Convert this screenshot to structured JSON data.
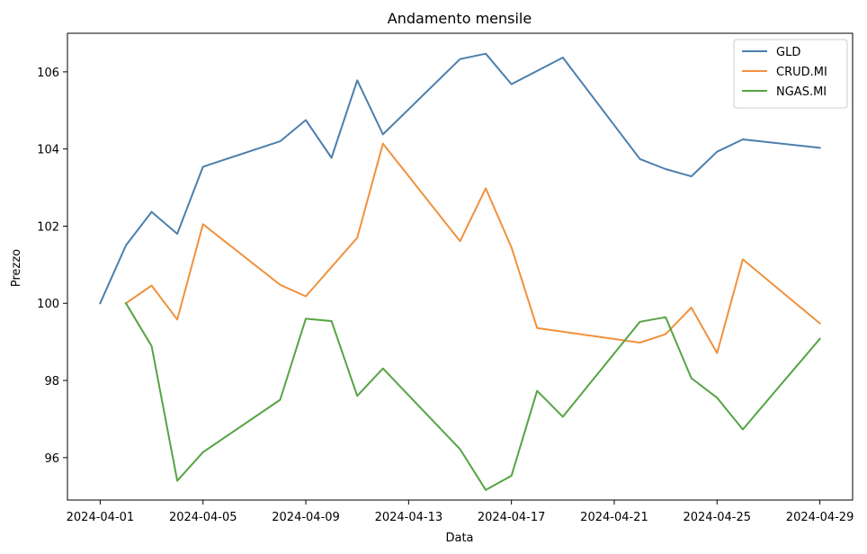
{
  "chart_data": {
    "type": "line",
    "title": "Andamento mensile",
    "xlabel": "Data",
    "ylabel": "Prezzo",
    "xlim": [
      "2024-04-01",
      "2024-04-29"
    ],
    "ylim": [
      94.9,
      107.0
    ],
    "x_ticks": [
      "2024-04-01",
      "2024-04-05",
      "2024-04-09",
      "2024-04-13",
      "2024-04-17",
      "2024-04-21",
      "2024-04-25",
      "2024-04-29"
    ],
    "y_ticks": [
      96,
      98,
      100,
      102,
      104,
      106
    ],
    "grid": false,
    "legend_position": "top-right",
    "series": [
      {
        "name": "GLD",
        "color": "#4c7fad",
        "x": [
          "2024-04-01",
          "2024-04-02",
          "2024-04-03",
          "2024-04-04",
          "2024-04-05",
          "2024-04-08",
          "2024-04-09",
          "2024-04-10",
          "2024-04-11",
          "2024-04-12",
          "2024-04-15",
          "2024-04-16",
          "2024-04-17",
          "2024-04-19",
          "2024-04-22",
          "2024-04-23",
          "2024-04-24",
          "2024-04-25",
          "2024-04-26",
          "2024-04-29"
        ],
        "values": [
          100.0,
          101.5,
          102.37,
          101.8,
          103.54,
          104.2,
          104.75,
          103.77,
          105.78,
          104.38,
          106.33,
          106.47,
          105.68,
          106.37,
          103.74,
          103.48,
          103.29,
          103.93,
          104.25,
          104.03
        ]
      },
      {
        "name": "CRUD.MI",
        "color": "#f0913d",
        "x": [
          "2024-04-02",
          "2024-04-03",
          "2024-04-04",
          "2024-04-05",
          "2024-04-08",
          "2024-04-09",
          "2024-04-11",
          "2024-04-12",
          "2024-04-15",
          "2024-04-16",
          "2024-04-17",
          "2024-04-18",
          "2024-04-22",
          "2024-04-23",
          "2024-04-24",
          "2024-04-25",
          "2024-04-26",
          "2024-04-29"
        ],
        "values": [
          100.0,
          100.46,
          99.58,
          102.05,
          100.48,
          100.18,
          101.7,
          104.14,
          101.61,
          102.98,
          101.45,
          99.36,
          98.98,
          99.2,
          99.89,
          98.71,
          101.14,
          99.48
        ]
      },
      {
        "name": "NGAS.MI",
        "color": "#55a344",
        "x": [
          "2024-04-02",
          "2024-04-03",
          "2024-04-04",
          "2024-04-05",
          "2024-04-08",
          "2024-04-09",
          "2024-04-10",
          "2024-04-11",
          "2024-04-12",
          "2024-04-15",
          "2024-04-16",
          "2024-04-17",
          "2024-04-18",
          "2024-04-19",
          "2024-04-22",
          "2024-04-23",
          "2024-04-24",
          "2024-04-25",
          "2024-04-26",
          "2024-04-29"
        ],
        "values": [
          100.0,
          98.89,
          95.4,
          96.14,
          97.5,
          99.6,
          99.54,
          97.6,
          98.31,
          96.22,
          95.16,
          95.53,
          97.73,
          97.06,
          99.52,
          99.64,
          98.06,
          97.55,
          96.73,
          99.08
        ]
      }
    ]
  }
}
